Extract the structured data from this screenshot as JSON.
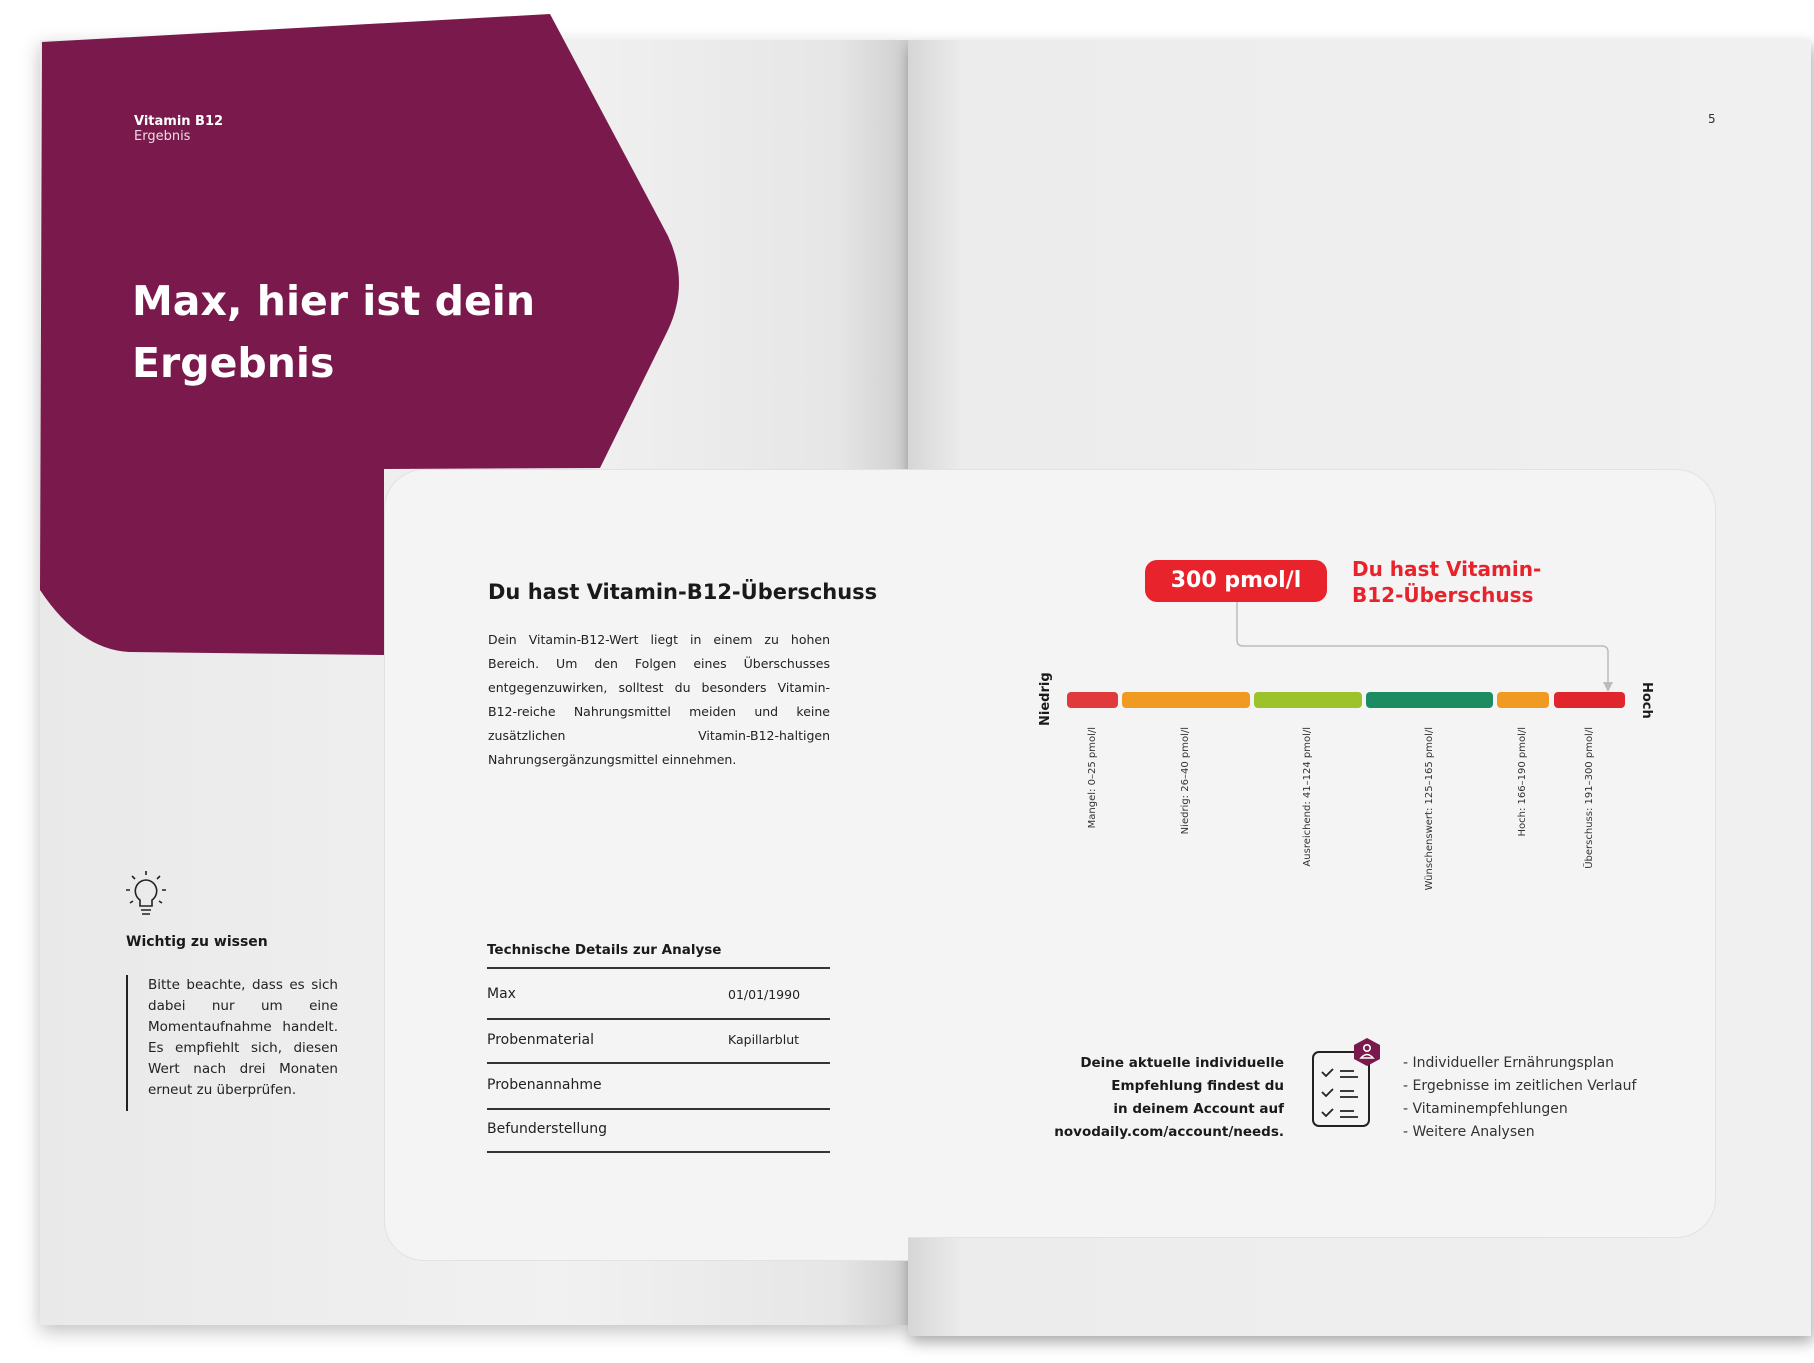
{
  "left_page": {
    "header": {
      "title": "Vitamin B12",
      "subtitle": "Ergebnis"
    },
    "headline_line1": "Max, hier ist dein",
    "headline_line2": "Ergebnis",
    "brand_color": "#7a1a4c",
    "result": {
      "heading": "Du hast Vitamin-B12-Überschuss",
      "body": "Dein Vitamin-B12-Wert liegt in einem zu hohen Bereich. Um den Folgen eines Überschusses entgegenzuwirken, solltest du besonders Vitamin-B12-reiche Nahrungsmittel meiden und keine zusätzlichen Vitamin-B12-haltigen Nahrungsergänzungsmittel einnehmen."
    },
    "tip": {
      "icon": "lightbulb-icon",
      "title": "Wichtig zu wissen",
      "body": "Bitte beachte, dass es sich dabei nur um eine Momentaufnahme handelt. Es empfiehlt sich, diesen Wert nach drei Monaten erneut zu überprüfen."
    },
    "details": {
      "heading": "Technische Details zur Analyse",
      "rows": [
        {
          "label": "Max",
          "value": "01/01/1990"
        },
        {
          "label": "Probenmaterial",
          "value": "Kapillarblut"
        },
        {
          "label": "Probenannahme",
          "value": ""
        },
        {
          "label": "Befunderstellung",
          "value": ""
        }
      ]
    }
  },
  "right_page": {
    "page_number": "5",
    "value_badge": "300 pmol/l",
    "status_line1": "Du hast Vitamin-",
    "status_line2": "B12-Überschuss",
    "status_color": "#e8232b",
    "scale": {
      "low_label": "Niedrig",
      "high_label": "Hoch",
      "marker_value": 300,
      "segments": [
        {
          "label": "Mangel: 0–25 pmol/l",
          "color": "#e03a3c"
        },
        {
          "label": "Niedrig: 26–40 pmol/l",
          "color": "#f09a22"
        },
        {
          "label": "Ausreichend: 41–124 pmol/l",
          "color": "#9cc22c"
        },
        {
          "label": "Wünschenswert: 125–165 pmol/l",
          "color": "#1e8c62"
        },
        {
          "label": "Hoch: 166–190 pmol/l",
          "color": "#f09a22"
        },
        {
          "label": "Überschuss: 191–300 pmol/l",
          "color": "#e0262c"
        }
      ]
    },
    "account": {
      "lines": [
        "Deine aktuelle individuelle",
        "Empfehlung findest du",
        "in deinem Account auf",
        "novodaily.com/account/needs."
      ],
      "icon": "checklist-user-icon",
      "features": [
        "- Individueller Ernährungsplan",
        "- Ergebnisse im zeitlichen Verlauf",
        "- Vitaminempfehlungen",
        "- Weitere Analysen"
      ]
    }
  }
}
